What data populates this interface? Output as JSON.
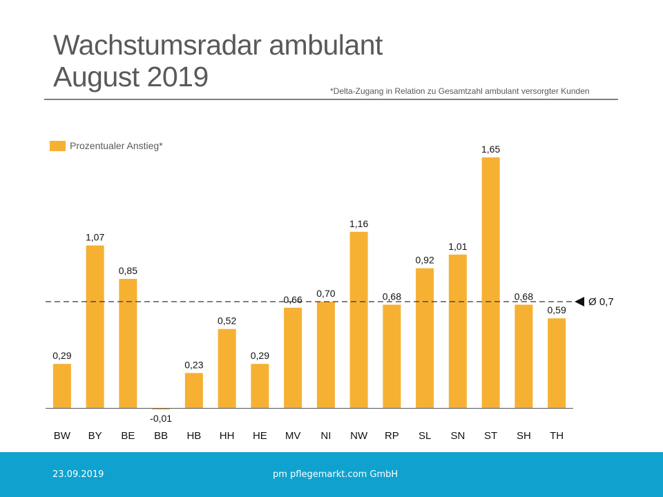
{
  "slide": {
    "title_line1": "Wachstumsradar ambulant",
    "title_line2": "August 2019",
    "footnote": "*Delta-Zugang  in Relation zu Gesamtzahl ambulant versorgter  Kunden"
  },
  "footer": {
    "date": "23.09.2019",
    "company": "pm pflegemarkt.com GmbH",
    "background_color": "#0fa2cf"
  },
  "chart_data": {
    "type": "bar",
    "categories": [
      "BW",
      "BY",
      "BE",
      "BB",
      "HB",
      "HH",
      "HE",
      "MV",
      "NI",
      "NW",
      "RP",
      "SL",
      "SN",
      "ST",
      "SH",
      "TH"
    ],
    "series": [
      {
        "name": "Prozentualer Anstieg*",
        "values": [
          0.29,
          1.07,
          0.85,
          -0.01,
          0.23,
          0.52,
          0.29,
          0.66,
          0.7,
          1.16,
          0.68,
          0.92,
          1.01,
          1.65,
          0.68,
          0.59
        ],
        "labels": [
          "0,29",
          "1,07",
          "0,85",
          "-0,01",
          "0,23",
          "0,52",
          "0,29",
          "0,66",
          "0,70",
          "1,16",
          "0,68",
          "0,92",
          "1,01",
          "1,65",
          "0,68",
          "0,59"
        ],
        "color": "#f6b133"
      }
    ],
    "average": {
      "value": 0.7,
      "label": "Ø 0,7"
    },
    "legend": {
      "label": "Prozentualer Anstieg*",
      "position": "top-left"
    },
    "title": "",
    "xlabel": "",
    "ylabel": "",
    "grid": false
  }
}
